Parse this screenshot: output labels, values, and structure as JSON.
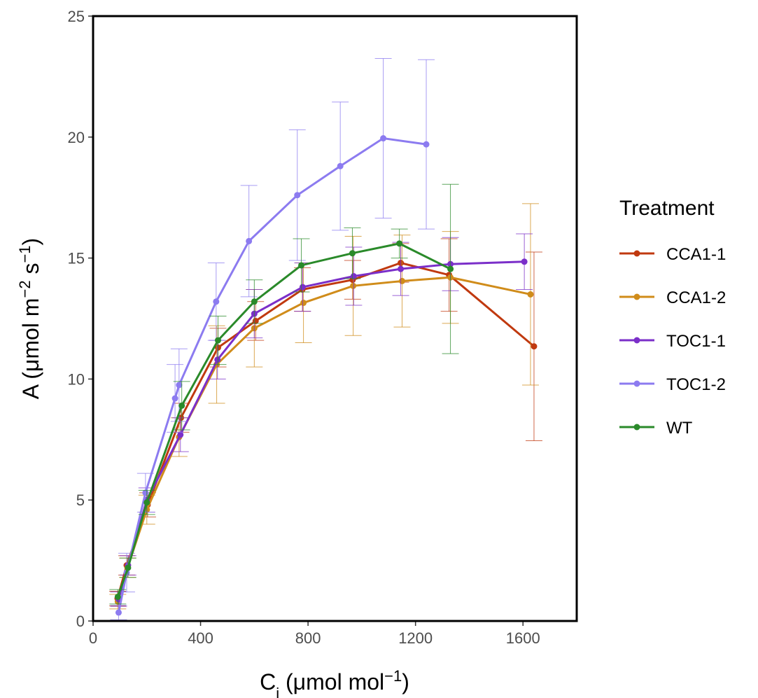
{
  "chart_data": {
    "type": "line",
    "x_label": [
      "C",
      "i",
      " (μmol mol",
      "−1",
      ")"
    ],
    "y_label": [
      "A (μmol m",
      "−2",
      " s",
      "−1",
      ")"
    ],
    "legend_title": "Treatment",
    "xlim": [
      0,
      1800
    ],
    "xticks": [
      0,
      400,
      800,
      1200,
      1600
    ],
    "ylim": [
      0,
      25
    ],
    "yticks": [
      0,
      5,
      10,
      15,
      20,
      25
    ],
    "grid": false,
    "legend": "right",
    "series": [
      {
        "name": "CCA1-1",
        "color": "#c0390f",
        "x": [
          91,
          125,
          203,
          327,
          465,
          605,
          779,
          966,
          1145,
          1325,
          1641
        ],
        "values": [
          0.93,
          2.3,
          4.8,
          8.4,
          11.3,
          12.4,
          13.7,
          14.1,
          14.8,
          14.3,
          11.35
        ],
        "errors": [
          0.3,
          0.4,
          0.5,
          0.6,
          0.8,
          0.8,
          0.9,
          0.8,
          0.8,
          1.5,
          3.9
        ]
      },
      {
        "name": "CCA1-2",
        "color": "#d08c1a",
        "x": [
          92,
          128,
          200,
          320,
          460,
          600,
          783,
          968,
          1150,
          1330,
          1628
        ],
        "values": [
          0.8,
          2.2,
          4.6,
          7.6,
          10.6,
          12.1,
          13.15,
          13.85,
          14.05,
          14.2,
          13.5
        ],
        "errors": [
          0.3,
          0.4,
          0.6,
          0.8,
          1.6,
          1.6,
          1.65,
          2.05,
          1.9,
          1.9,
          3.75
        ]
      },
      {
        "name": "TOC1-1",
        "color": "#7b2fc9",
        "x": [
          95,
          130,
          200,
          325,
          463,
          600,
          780,
          970,
          1145,
          1330,
          1605
        ],
        "values": [
          0.9,
          2.3,
          5.0,
          7.7,
          10.8,
          12.7,
          13.8,
          14.25,
          14.55,
          14.75,
          14.85
        ],
        "errors": [
          0.3,
          0.4,
          0.5,
          0.7,
          0.8,
          1.0,
          1.0,
          1.2,
          1.1,
          1.1,
          1.15
        ]
      },
      {
        "name": "TOC1-2",
        "color": "#8c7bf0",
        "x": [
          95,
          125,
          195,
          305,
          320,
          458,
          580,
          760,
          920,
          1080,
          1240
        ],
        "values": [
          0.35,
          2.0,
          5.3,
          9.2,
          9.75,
          13.2,
          15.7,
          17.6,
          18.8,
          19.95,
          19.7
        ],
        "errors": [
          0.3,
          0.8,
          0.8,
          1.4,
          1.5,
          1.6,
          2.3,
          2.7,
          2.65,
          3.3,
          3.5
        ]
      },
      {
        "name": "WT",
        "color": "#2a8a2a",
        "x": [
          92,
          130,
          200,
          330,
          465,
          600,
          775,
          965,
          1140,
          1330
        ],
        "values": [
          1.0,
          2.2,
          4.9,
          8.9,
          11.6,
          13.2,
          14.7,
          15.2,
          15.6,
          14.55
        ],
        "errors": [
          0.3,
          0.4,
          0.5,
          1.0,
          1.0,
          0.9,
          1.1,
          1.05,
          0.6,
          3.5
        ]
      }
    ]
  }
}
